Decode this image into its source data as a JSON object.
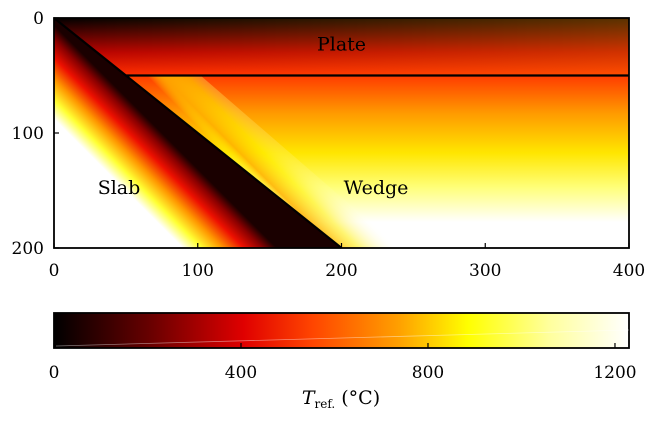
{
  "chart_data": [
    {
      "type": "heatmap",
      "title": "",
      "xlabel": "",
      "ylabel": "",
      "xlim": [
        0,
        400
      ],
      "ylim": [
        200,
        0
      ],
      "y_axis_inverted": true,
      "xticks": [
        0,
        100,
        200,
        300,
        400
      ],
      "yticks": [
        0,
        100,
        200
      ],
      "colormap": "hot",
      "color_range": [
        0,
        1230
      ],
      "boundaries": [
        {
          "name": "slab-top",
          "x": [
            0,
            200
          ],
          "y": [
            0,
            200
          ]
        },
        {
          "name": "plate-base",
          "x": [
            50,
            400
          ],
          "y": [
            50,
            50
          ]
        }
      ],
      "regions": [
        {
          "label": "Plate",
          "x": 200,
          "y": 25
        },
        {
          "label": "Slab",
          "x": 45,
          "y": 150
        },
        {
          "label": "Wedge",
          "x": 225,
          "y": 150
        }
      ],
      "grid": false
    },
    {
      "type": "colorbar",
      "orientation": "horizontal",
      "label": "T_ref. (°C)",
      "range": [
        0,
        1230
      ],
      "ticks": [
        0,
        400,
        800,
        1200
      ],
      "colormap": "hot"
    }
  ],
  "colors": {
    "black": "#000000",
    "dark_red": "#8b0000",
    "red": "#ff1a00",
    "orange": "#ff9900",
    "yellow": "#ffff00",
    "white": "#ffffff"
  }
}
